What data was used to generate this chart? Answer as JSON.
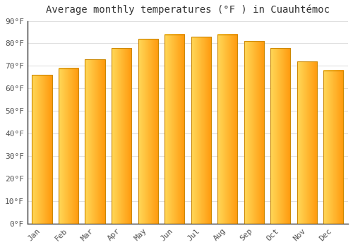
{
  "title": "Average monthly temperatures (°F ) in Cuauhtémoc",
  "months": [
    "Jan",
    "Feb",
    "Mar",
    "Apr",
    "May",
    "Jun",
    "Jul",
    "Aug",
    "Sep",
    "Oct",
    "Nov",
    "Dec"
  ],
  "values": [
    66,
    69,
    73,
    78,
    82,
    84,
    83,
    84,
    81,
    78,
    72,
    68
  ],
  "bar_color_left": "#FFD966",
  "bar_color_right": "#FFA500",
  "bar_edge_color": "#CC8800",
  "ylim": [
    0,
    90
  ],
  "yticks": [
    0,
    10,
    20,
    30,
    40,
    50,
    60,
    70,
    80,
    90
  ],
  "ytick_labels": [
    "0°F",
    "10°F",
    "20°F",
    "30°F",
    "40°F",
    "50°F",
    "60°F",
    "70°F",
    "80°F",
    "90°F"
  ],
  "background_color": "#ffffff",
  "grid_color": "#e0e0e0",
  "title_fontsize": 10,
  "tick_fontsize": 8,
  "bar_width": 0.75
}
